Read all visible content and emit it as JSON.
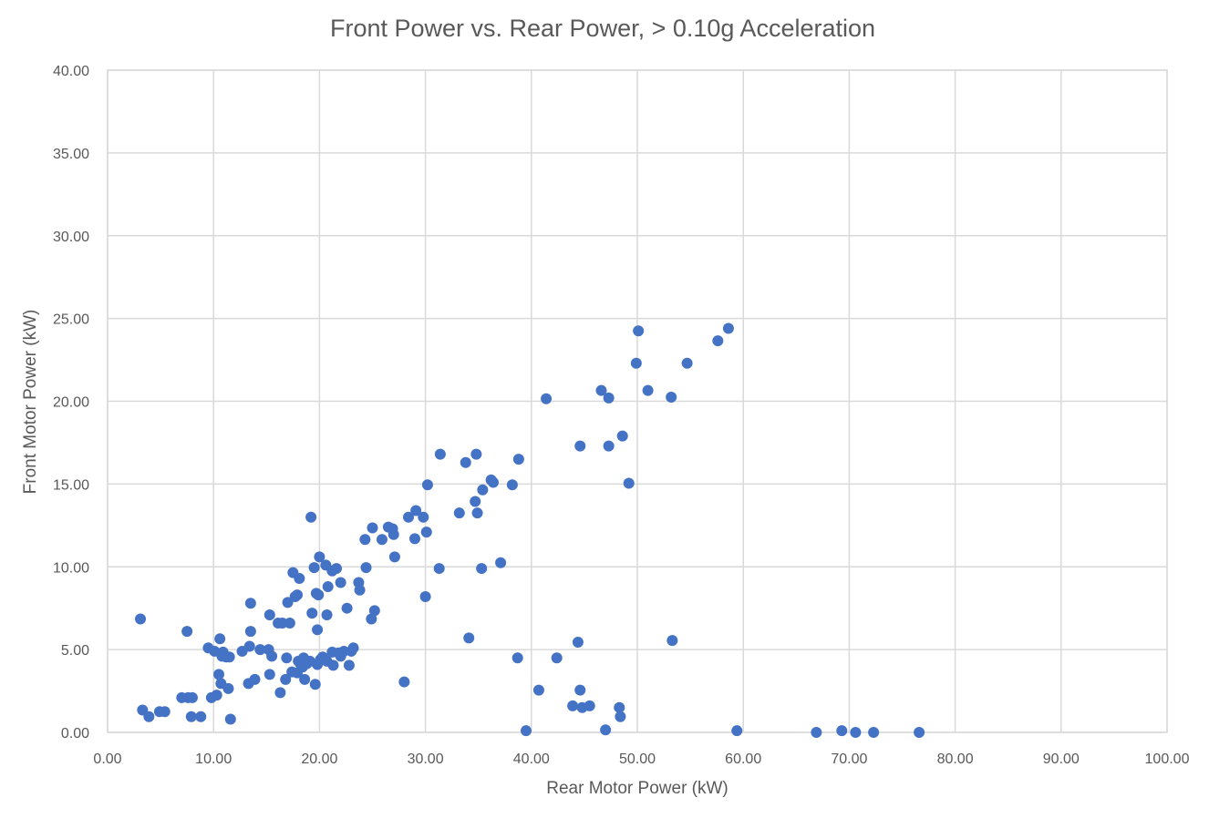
{
  "chart_data": {
    "type": "scatter",
    "title": "Front Power vs. Rear Power, > 0.10g Acceleration",
    "xlabel": "Rear Motor Power (kW)",
    "ylabel": "Front Motor Power (kW)",
    "xlim": [
      0,
      100
    ],
    "ylim": [
      0,
      40
    ],
    "x_ticks": [
      "0.00",
      "10.00",
      "20.00",
      "30.00",
      "40.00",
      "50.00",
      "60.00",
      "70.00",
      "80.00",
      "90.00",
      "100.00"
    ],
    "y_ticks": [
      "0.00",
      "5.00",
      "10.00",
      "15.00",
      "20.00",
      "25.00",
      "30.00",
      "35.00",
      "40.00"
    ],
    "grid": true,
    "legend": "none",
    "series": [
      {
        "color": "#4472c4",
        "points": [
          [
            3.1,
            6.85
          ],
          [
            3.3,
            1.35
          ],
          [
            3.9,
            0.95
          ],
          [
            4.9,
            1.25
          ],
          [
            5.4,
            1.25
          ],
          [
            7.0,
            2.1
          ],
          [
            7.5,
            6.1
          ],
          [
            7.6,
            2.1
          ],
          [
            7.9,
            0.95
          ],
          [
            8.0,
            2.1
          ],
          [
            8.8,
            0.95
          ],
          [
            9.5,
            5.1
          ],
          [
            9.8,
            2.1
          ],
          [
            10.1,
            4.9
          ],
          [
            10.3,
            2.25
          ],
          [
            10.5,
            3.5
          ],
          [
            10.6,
            5.65
          ],
          [
            10.7,
            2.95
          ],
          [
            10.8,
            4.6
          ],
          [
            10.9,
            4.85
          ],
          [
            11.2,
            4.55
          ],
          [
            11.5,
            4.55
          ],
          [
            11.4,
            2.65
          ],
          [
            11.6,
            0.8
          ],
          [
            12.7,
            4.9
          ],
          [
            13.3,
            2.95
          ],
          [
            13.4,
            5.2
          ],
          [
            13.5,
            7.8
          ],
          [
            13.5,
            6.1
          ],
          [
            13.9,
            3.2
          ],
          [
            14.4,
            5.0
          ],
          [
            15.2,
            5.0
          ],
          [
            15.3,
            7.1
          ],
          [
            15.3,
            3.5
          ],
          [
            15.5,
            4.6
          ],
          [
            16.1,
            6.6
          ],
          [
            16.3,
            2.4
          ],
          [
            16.5,
            6.6
          ],
          [
            16.8,
            3.2
          ],
          [
            16.9,
            4.5
          ],
          [
            17.0,
            7.85
          ],
          [
            17.2,
            6.6
          ],
          [
            17.5,
            9.65
          ],
          [
            17.4,
            3.65
          ],
          [
            17.7,
            8.2
          ],
          [
            17.9,
            8.3
          ],
          [
            17.9,
            3.6
          ],
          [
            18.0,
            4.3
          ],
          [
            18.1,
            9.3
          ],
          [
            18.2,
            4.15
          ],
          [
            18.4,
            3.95
          ],
          [
            18.5,
            4.5
          ],
          [
            18.6,
            3.2
          ],
          [
            18.8,
            4.15
          ],
          [
            19.1,
            4.3
          ],
          [
            19.2,
            13.0
          ],
          [
            19.3,
            7.2
          ],
          [
            19.5,
            9.95
          ],
          [
            19.6,
            2.9
          ],
          [
            19.7,
            8.4
          ],
          [
            19.8,
            6.2
          ],
          [
            19.8,
            4.1
          ],
          [
            19.9,
            8.3
          ],
          [
            20.0,
            10.6
          ],
          [
            20.1,
            4.4
          ],
          [
            20.3,
            4.55
          ],
          [
            20.6,
            10.1
          ],
          [
            20.7,
            4.3
          ],
          [
            20.7,
            7.1
          ],
          [
            20.8,
            8.8
          ],
          [
            21.2,
            9.75
          ],
          [
            21.2,
            4.85
          ],
          [
            21.3,
            4.05
          ],
          [
            21.6,
            9.9
          ],
          [
            21.8,
            4.8
          ],
          [
            22.0,
            4.6
          ],
          [
            22.0,
            9.05
          ],
          [
            22.3,
            4.9
          ],
          [
            22.6,
            7.5
          ],
          [
            22.8,
            4.05
          ],
          [
            23.0,
            4.9
          ],
          [
            23.2,
            5.1
          ],
          [
            23.7,
            9.05
          ],
          [
            23.8,
            8.6
          ],
          [
            24.3,
            11.65
          ],
          [
            24.4,
            9.95
          ],
          [
            24.9,
            6.85
          ],
          [
            25.0,
            12.35
          ],
          [
            25.2,
            7.35
          ],
          [
            25.9,
            11.65
          ],
          [
            26.5,
            12.4
          ],
          [
            26.9,
            12.3
          ],
          [
            27.0,
            11.95
          ],
          [
            27.1,
            10.6
          ],
          [
            28.0,
            3.05
          ],
          [
            28.4,
            13.0
          ],
          [
            29.0,
            11.7
          ],
          [
            29.1,
            13.4
          ],
          [
            29.8,
            13.0
          ],
          [
            30.0,
            8.2
          ],
          [
            30.1,
            12.1
          ],
          [
            30.2,
            14.95
          ],
          [
            31.3,
            9.9
          ],
          [
            31.4,
            16.8
          ],
          [
            33.2,
            13.25
          ],
          [
            33.8,
            16.3
          ],
          [
            34.1,
            5.7
          ],
          [
            34.7,
            13.95
          ],
          [
            34.8,
            16.8
          ],
          [
            34.9,
            13.25
          ],
          [
            35.3,
            9.9
          ],
          [
            35.4,
            14.65
          ],
          [
            36.2,
            15.25
          ],
          [
            36.4,
            15.1
          ],
          [
            37.1,
            10.25
          ],
          [
            38.2,
            14.95
          ],
          [
            38.7,
            4.5
          ],
          [
            38.8,
            16.5
          ],
          [
            39.5,
            0.1
          ],
          [
            40.7,
            2.55
          ],
          [
            41.4,
            20.15
          ],
          [
            42.4,
            4.5
          ],
          [
            43.9,
            1.6
          ],
          [
            44.4,
            5.45
          ],
          [
            44.6,
            2.55
          ],
          [
            44.6,
            17.3
          ],
          [
            44.8,
            1.5
          ],
          [
            45.5,
            1.6
          ],
          [
            46.6,
            20.65
          ],
          [
            47.0,
            0.15
          ],
          [
            47.3,
            17.3
          ],
          [
            47.3,
            20.2
          ],
          [
            48.3,
            1.5
          ],
          [
            48.4,
            0.95
          ],
          [
            48.6,
            17.9
          ],
          [
            49.2,
            15.05
          ],
          [
            49.9,
            22.3
          ],
          [
            50.1,
            24.25
          ],
          [
            51.0,
            20.65
          ],
          [
            53.2,
            20.25
          ],
          [
            53.3,
            5.55
          ],
          [
            54.7,
            22.3
          ],
          [
            57.6,
            23.65
          ],
          [
            58.6,
            24.4
          ],
          [
            59.4,
            0.1
          ],
          [
            66.9,
            0.0
          ],
          [
            69.3,
            0.1
          ],
          [
            70.6,
            0.0
          ],
          [
            72.3,
            0.0
          ],
          [
            76.6,
            0.0
          ]
        ]
      }
    ]
  }
}
